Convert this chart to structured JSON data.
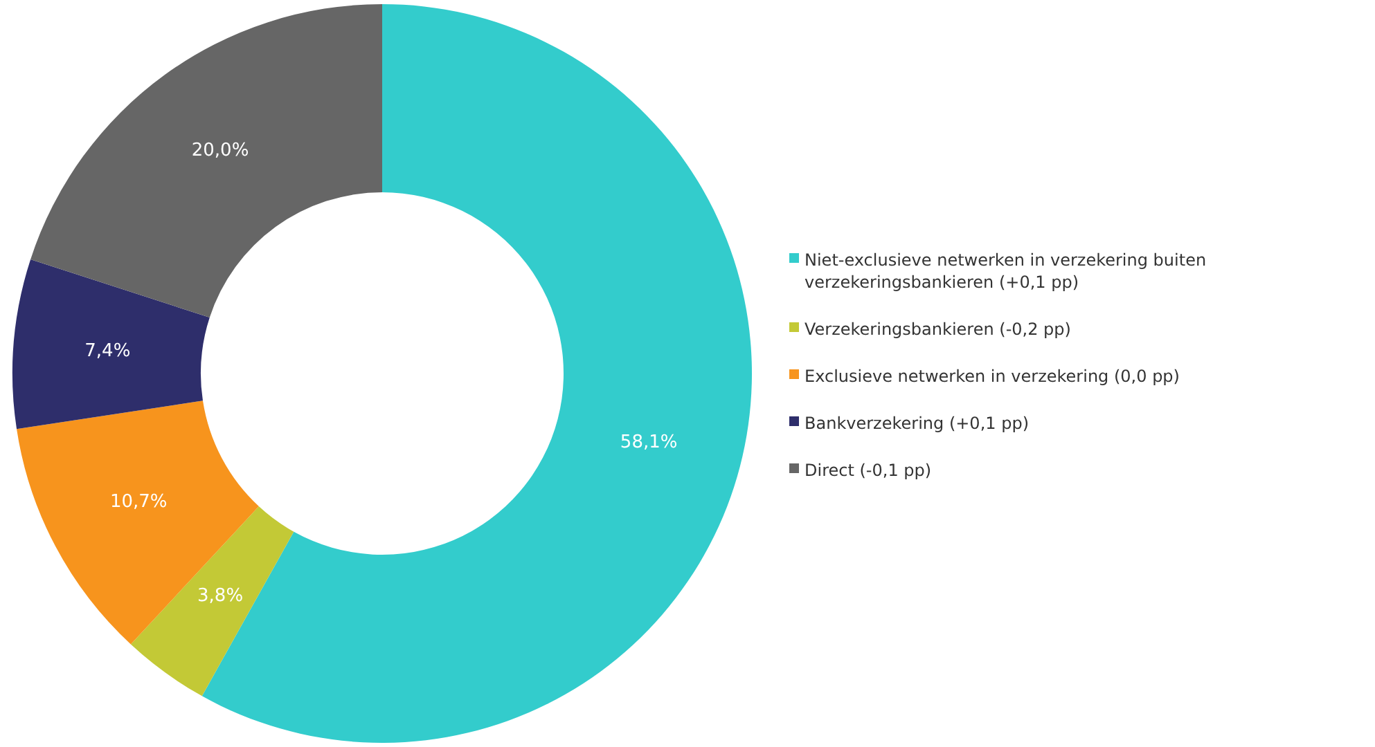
{
  "chart_data": {
    "type": "donut",
    "categories": [
      "Niet-exclusieve netwerken in verzekering buiten verzekeringsbankieren (+0,1 pp)",
      "Verzekeringsbankieren (-0,2 pp)",
      "Exclusieve netwerken in verzekering (0,0 pp)",
      "Bankverzekering (+0,1 pp)",
      "Direct (-0,1 pp)"
    ],
    "values": [
      58.1,
      3.8,
      10.7,
      7.4,
      20.0
    ],
    "colors": [
      "#33cccc",
      "#c3c936",
      "#f7941d",
      "#2e2e6b",
      "#666666"
    ],
    "value_labels": [
      "58,1%",
      "3,8%",
      "10,7%",
      "7,4%",
      "20,0%"
    ],
    "legend": "right"
  }
}
